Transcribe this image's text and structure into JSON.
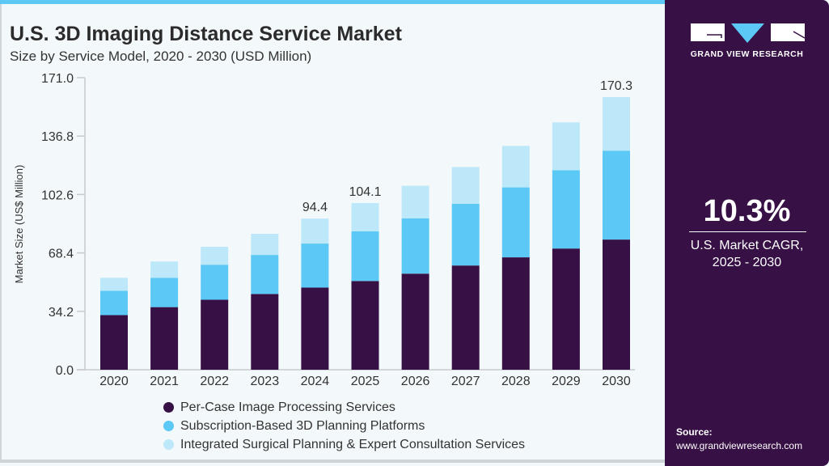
{
  "header": {
    "title": "U.S. 3D Imaging Distance Service Market",
    "subtitle": "Size by Service Model, 2020 - 2030 (USD Million)"
  },
  "side_panel": {
    "logo_text": "GRAND VIEW RESEARCH",
    "cagr_value": "10.3%",
    "cagr_label_line1": "U.S. Market CAGR,",
    "cagr_label_line2": "2025 - 2030",
    "source_label": "Source:",
    "source_url": "www.grandviewresearch.com"
  },
  "colors": {
    "accent": "#5bc8f5",
    "panel": "#371045"
  },
  "chart_data": {
    "type": "bar",
    "stacked": true,
    "title": "U.S. 3D Imaging Distance Service Market",
    "subtitle": "Size by Service Model, 2020 - 2030 (USD Million)",
    "xlabel": "",
    "ylabel": "Market Size (US$ Million)",
    "ylim": [
      0,
      171.0
    ],
    "yticks": [
      "0.0",
      "34.2",
      "68.4",
      "102.6",
      "136.8",
      "171.0"
    ],
    "grid": false,
    "legend_position": "bottom",
    "categories": [
      "2020",
      "2021",
      "2022",
      "2023",
      "2024",
      "2025",
      "2026",
      "2027",
      "2028",
      "2029",
      "2030"
    ],
    "series": [
      {
        "name": "Per-Case Image Processing Services",
        "color": "#371045",
        "values": [
          34.1,
          39.1,
          43.7,
          47.3,
          51.3,
          55.4,
          60.0,
          65.1,
          70.2,
          75.7,
          81.3
        ]
      },
      {
        "name": "Subscription-Based 3D Planning Platforms",
        "color": "#5bc8f5",
        "values": [
          15.2,
          18.3,
          21.9,
          24.4,
          27.5,
          31.0,
          34.6,
          38.6,
          43.7,
          48.9,
          55.5
        ]
      },
      {
        "name": "Integrated Surgical Planning & Expert Consultation Services",
        "color": "#bde8f9",
        "values": [
          8.1,
          10.2,
          11.2,
          13.2,
          15.6,
          17.7,
          20.3,
          22.9,
          25.9,
          29.9,
          33.5
        ]
      }
    ],
    "data_labels": {
      "2024": "94.4",
      "2025": "104.1",
      "2030": "170.3"
    }
  }
}
